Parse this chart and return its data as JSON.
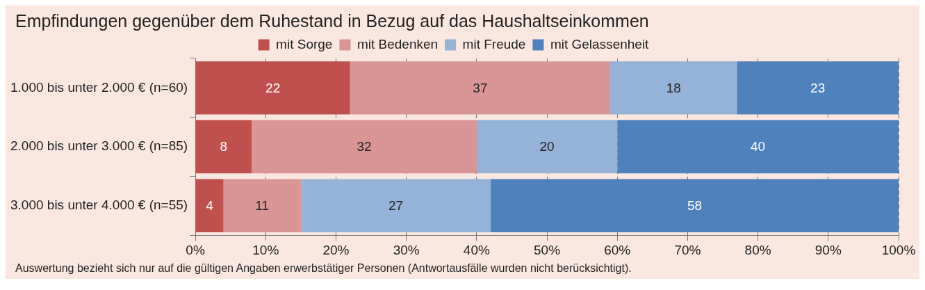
{
  "chart_data": {
    "type": "bar",
    "orientation": "horizontal",
    "stacked": true,
    "title": "Empfindungen gegenüber dem Ruhestand in Bezug auf das Haushaltseinkommen",
    "categories": [
      "1.000 bis unter 2.000 € (n=60)",
      "2.000 bis unter 3.000 € (n=85)",
      "3.000 bis unter 4.000 € (n=55)"
    ],
    "series": [
      {
        "name": "mit Sorge",
        "color": "#c0504d",
        "values": [
          22,
          8,
          4
        ]
      },
      {
        "name": "mit Bedenken",
        "color": "#d99694",
        "values": [
          37,
          32,
          11
        ]
      },
      {
        "name": "mit Freude",
        "color": "#95b3d7",
        "values": [
          18,
          20,
          27
        ]
      },
      {
        "name": "mit Gelassenheit",
        "color": "#4f81bd",
        "values": [
          23,
          40,
          58
        ]
      }
    ],
    "xlim": [
      0,
      100
    ],
    "xticks": [
      {
        "value": 0,
        "label": "0%"
      },
      {
        "value": 10,
        "label": "10%"
      },
      {
        "value": 20,
        "label": "20%"
      },
      {
        "value": 30,
        "label": "30%"
      },
      {
        "value": 40,
        "label": "40%"
      },
      {
        "value": 50,
        "label": "50%"
      },
      {
        "value": 60,
        "label": "60%"
      },
      {
        "value": 70,
        "label": "70%"
      },
      {
        "value": 80,
        "label": "80%"
      },
      {
        "value": 90,
        "label": "90%"
      },
      {
        "value": 100,
        "label": "100%"
      }
    ],
    "grid": "x",
    "legend": "top",
    "data_labels": true,
    "annotations": [
      "Auswertung bezieht sich nur auf die gültigen Angaben erwerbstätiger Personen (Antwortausfälle wurden nicht berücksichtigt)."
    ]
  }
}
